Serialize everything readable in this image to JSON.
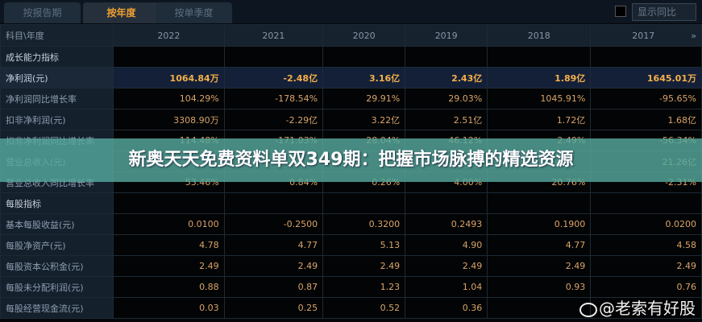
{
  "tabs": [
    "按报告期",
    "按年度",
    "按单季度"
  ],
  "show_yoy": "显示同比",
  "header": {
    "label": "科目\\年度",
    "years": [
      "2022",
      "2021",
      "2020",
      "2019",
      "2018",
      "2017"
    ]
  },
  "rows": [
    {
      "label": "成长能力指标",
      "section": true,
      "values": [
        "",
        "",
        "",
        "",
        "",
        ""
      ]
    },
    {
      "label": "净利润(元)",
      "highlight": true,
      "values": [
        "1064.84万",
        "-2.48亿",
        "3.16亿",
        "2.43亿",
        "1.89亿",
        "1645.01万"
      ]
    },
    {
      "label": "净利润同比增长率",
      "values": [
        "104.29%",
        "-178.54%",
        "29.91%",
        "29.03%",
        "1045.91%",
        "-95.65%"
      ]
    },
    {
      "label": "扣非净利润(元)",
      "values": [
        "3308.90万",
        "-2.29亿",
        "3.22亿",
        "2.51亿",
        "1.72亿",
        "1.68亿"
      ]
    },
    {
      "label": "扣非净利润同比增长率",
      "values": [
        "114.48%",
        "-171.03%",
        "28.04%",
        "46.12%",
        "2.49%",
        "-56.34%"
      ]
    },
    {
      "label": "营业总收入(元)",
      "values": [
        "",
        "",
        "",
        "",
        "",
        "21.26亿"
      ]
    },
    {
      "label": "营业总收入同比增长率",
      "values": [
        "53.46%",
        "0.84%",
        "0.26%",
        "4.00%",
        "20.76%",
        "-2.31%"
      ]
    },
    {
      "label": "每股指标",
      "section": true,
      "values": [
        "",
        "",
        "",
        "",
        "",
        ""
      ]
    },
    {
      "label": "基本每股收益(元)",
      "values": [
        "0.0100",
        "-0.2500",
        "0.3200",
        "0.2493",
        "0.1900",
        "0.0200"
      ]
    },
    {
      "label": "每股净资产(元)",
      "values": [
        "4.78",
        "4.77",
        "5.13",
        "4.90",
        "4.77",
        "4.58"
      ]
    },
    {
      "label": "每股资本公积金(元)",
      "values": [
        "2.49",
        "2.49",
        "2.49",
        "2.49",
        "2.49",
        "2.49"
      ]
    },
    {
      "label": "每股未分配利润(元)",
      "values": [
        "0.88",
        "0.87",
        "1.23",
        "1.04",
        "0.93",
        "0.76"
      ]
    },
    {
      "label": "每股经营现金流(元)",
      "values": [
        "0.03",
        "0.25",
        "0.52",
        "0.36",
        "",
        ""
      ]
    }
  ],
  "banner": "新奥天天免费资料单双349期：把握市场脉搏的精选资源",
  "watermark": "@老索有好股"
}
